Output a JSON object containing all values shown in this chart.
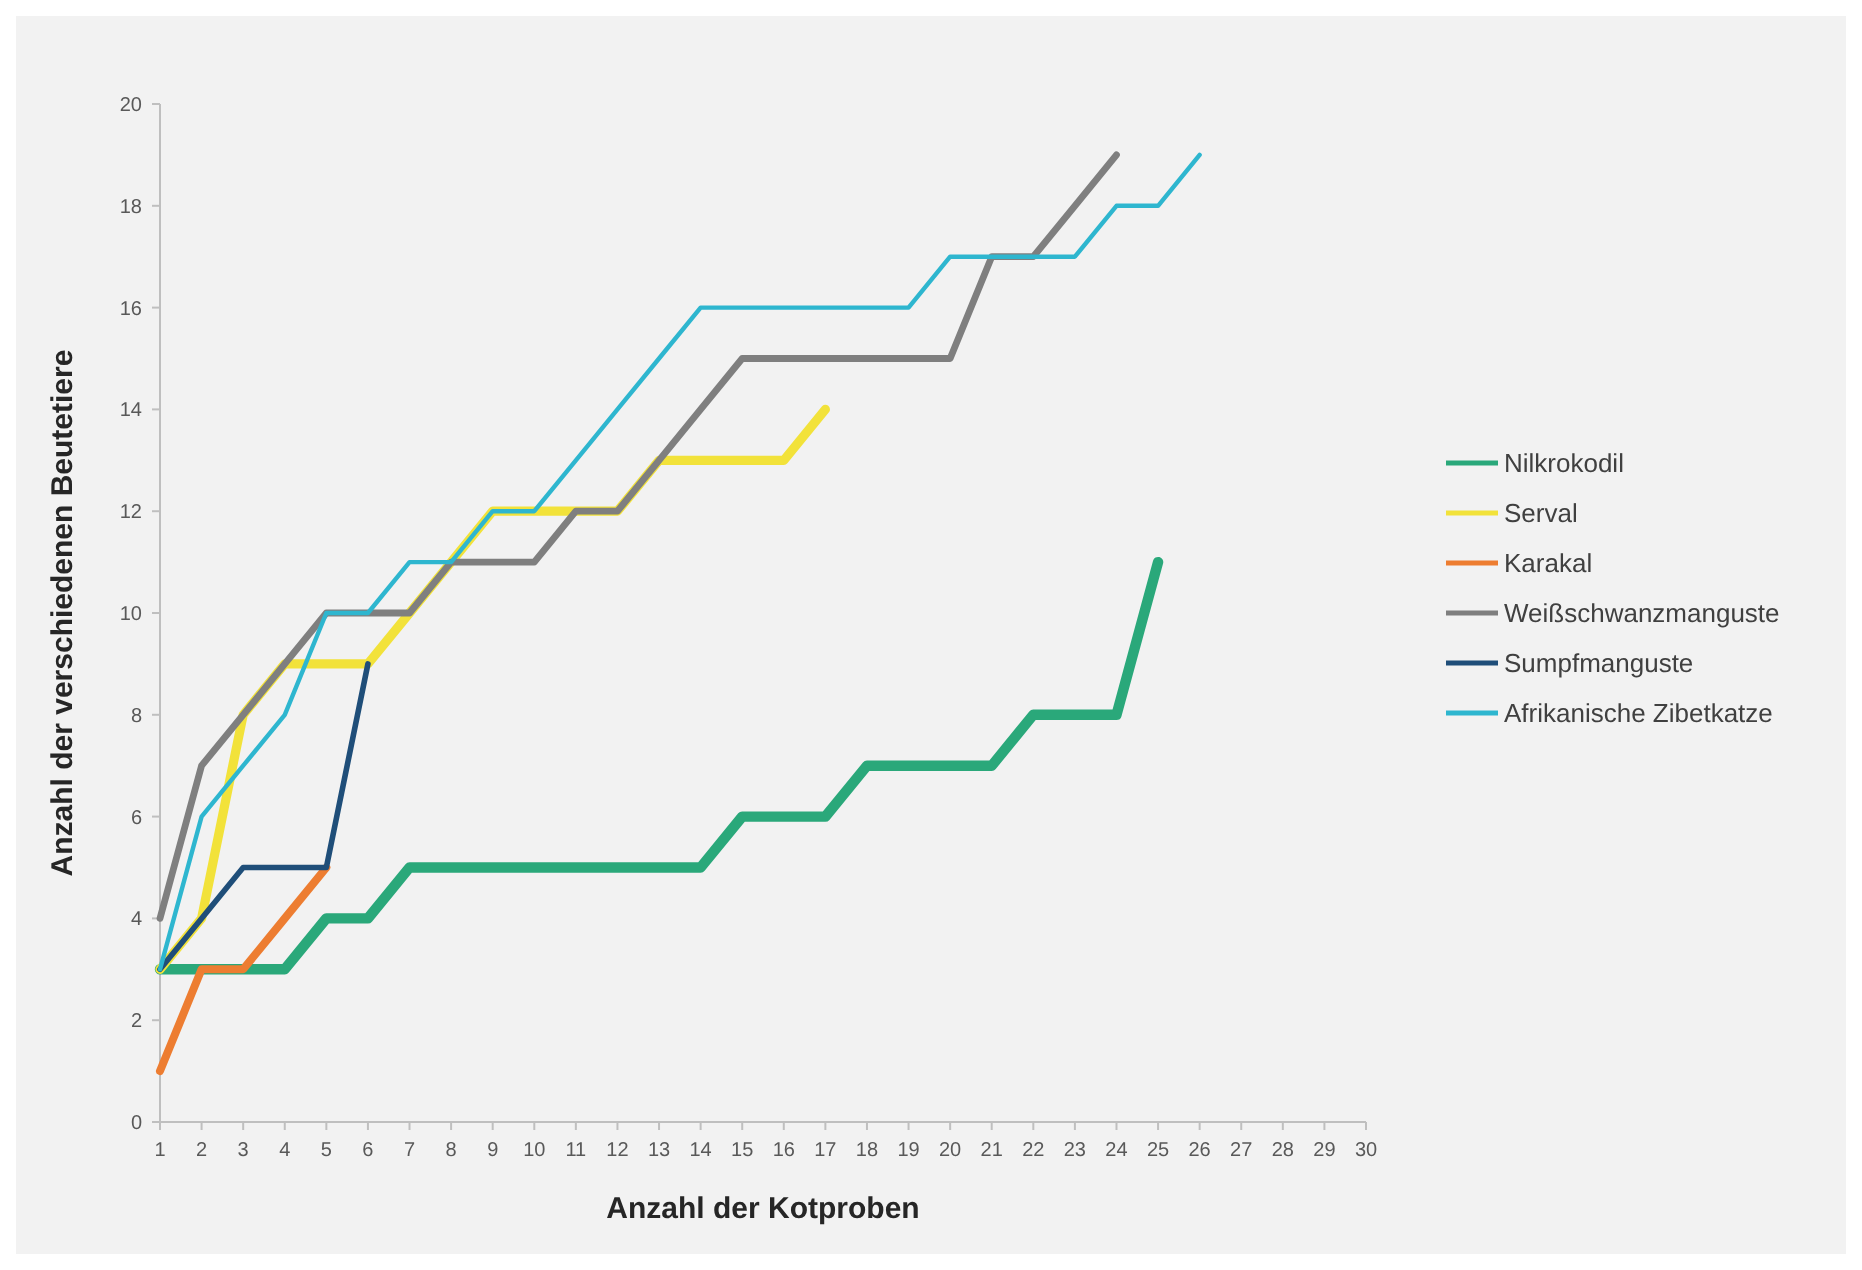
{
  "chart_data": {
    "type": "line",
    "xlabel": "Anzahl der Kotproben",
    "ylabel": "Anzahl der verschiedenen Beutetiere",
    "xlim": [
      1,
      30
    ],
    "xticks": [
      1,
      2,
      3,
      4,
      5,
      6,
      7,
      8,
      9,
      10,
      11,
      12,
      13,
      14,
      15,
      16,
      17,
      18,
      19,
      20,
      21,
      22,
      23,
      24,
      25,
      26,
      27,
      28,
      29,
      30
    ],
    "ylim": [
      0,
      20
    ],
    "yticks": [
      0,
      2,
      4,
      6,
      8,
      10,
      12,
      14,
      16,
      18,
      20
    ],
    "grid": false,
    "legend": "right",
    "marker": "none",
    "line_style": "solid",
    "series": [
      {
        "name": "Nilkrokodil",
        "color": "#2aa87a",
        "x": [
          1,
          2,
          3,
          4,
          5,
          6,
          7,
          8,
          9,
          10,
          11,
          12,
          13,
          14,
          15,
          16,
          17,
          18,
          19,
          20,
          21,
          22,
          23,
          24,
          25
        ],
        "values": [
          3,
          3,
          3,
          3,
          4,
          4,
          5,
          5,
          5,
          5,
          5,
          5,
          5,
          5,
          6,
          6,
          6,
          7,
          7,
          7,
          7,
          8,
          8,
          8,
          11
        ]
      },
      {
        "name": "Serval",
        "color": "#f2e23a",
        "x": [
          1,
          2,
          3,
          4,
          5,
          6,
          7,
          8,
          9,
          10,
          11,
          12,
          13,
          14,
          15,
          16,
          17
        ],
        "values": [
          3,
          4,
          8,
          9,
          9,
          9,
          10,
          11,
          12,
          12,
          12,
          12,
          13,
          13,
          13,
          13,
          14
        ]
      },
      {
        "name": "Karakal",
        "color": "#ed7d31",
        "x": [
          1,
          2,
          3,
          4,
          5
        ],
        "values": [
          1,
          3,
          3,
          4,
          5
        ]
      },
      {
        "name": "Weißschwanzmanguste",
        "color": "#7f7f7f",
        "x": [
          1,
          2,
          3,
          4,
          5,
          6,
          7,
          8,
          9,
          10,
          11,
          12,
          13,
          14,
          15,
          16,
          17,
          18,
          19,
          20,
          21,
          22,
          23,
          24
        ],
        "values": [
          4,
          7,
          8,
          9,
          10,
          10,
          10,
          11,
          11,
          11,
          12,
          12,
          13,
          14,
          15,
          15,
          15,
          15,
          15,
          15,
          17,
          17,
          18,
          19
        ]
      },
      {
        "name": "Sumpfmanguste",
        "color": "#1f4e79",
        "x": [
          1,
          2,
          3,
          4,
          5,
          6
        ],
        "values": [
          3,
          4,
          5,
          5,
          5,
          9
        ]
      },
      {
        "name": "Afrikanische Zibetkatze",
        "color": "#2eb6cf",
        "x": [
          1,
          2,
          3,
          4,
          5,
          6,
          7,
          8,
          9,
          10,
          11,
          12,
          13,
          14,
          15,
          16,
          17,
          18,
          19,
          20,
          21,
          22,
          23,
          24,
          25,
          26
        ],
        "values": [
          3,
          6,
          7,
          8,
          10,
          10,
          11,
          11,
          12,
          12,
          13,
          14,
          15,
          16,
          16,
          16,
          16,
          16,
          16,
          17,
          17,
          17,
          17,
          18,
          18,
          19
        ]
      }
    ]
  }
}
